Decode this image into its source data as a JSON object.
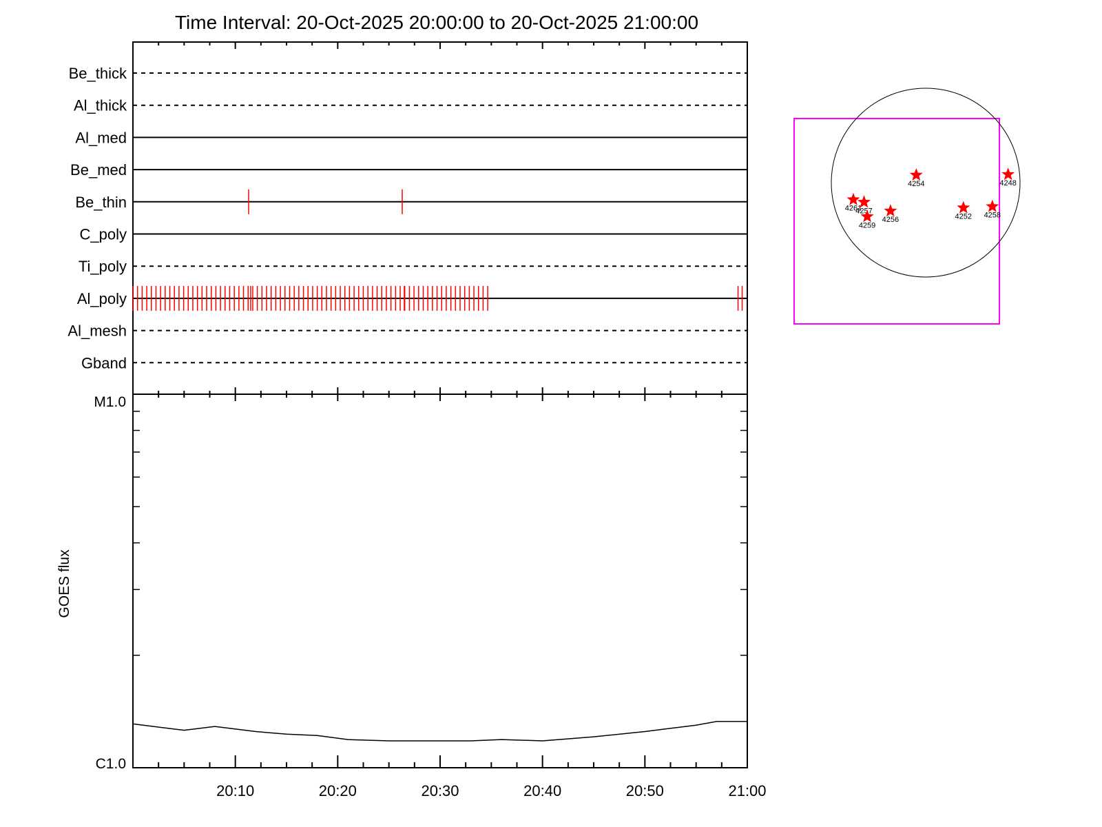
{
  "chart_data": [
    {
      "type": "line",
      "title": "Time Interval: 20-Oct-2025 20:00:00 to 20-Oct-2025 21:00:00",
      "xlim": [
        "20:00",
        "21:00"
      ],
      "filters": [
        {
          "name": "Be_thick",
          "style": "dashed",
          "events": []
        },
        {
          "name": "Al_thick",
          "style": "dashed",
          "events": []
        },
        {
          "name": "Al_med",
          "style": "solid",
          "events": []
        },
        {
          "name": "Be_med",
          "style": "solid",
          "events": []
        },
        {
          "name": "Be_thin",
          "style": "solid",
          "events": [
            11.3,
            26.3
          ]
        },
        {
          "name": "C_poly",
          "style": "solid",
          "events": []
        },
        {
          "name": "Ti_poly",
          "style": "dashed",
          "events": []
        },
        {
          "name": "Al_poly",
          "style": "solid",
          "events": "regular",
          "event_start": 0,
          "event_end": 34.7,
          "event_interval": 0.45,
          "extra_events": [
            11.5,
            26.5,
            59.1,
            59.5
          ]
        },
        {
          "name": "Al_mesh",
          "style": "dashed",
          "events": []
        },
        {
          "name": "Gband",
          "style": "dashed",
          "events": []
        }
      ],
      "event_color": "#ff0000"
    },
    {
      "type": "line",
      "ylabel": "GOES flux",
      "y_tick_labels": [
        "M1.0",
        "C1.0"
      ],
      "x_tick_labels": [
        "20:10",
        "20:20",
        "20:30",
        "20:40",
        "20:50",
        "21:00"
      ],
      "x_ticks_min": [
        10,
        20,
        30,
        40,
        50,
        60
      ],
      "yscale": "log",
      "ylim": [
        1e-06,
        1e-05
      ],
      "series": [
        {
          "x": [
            0,
            2,
            5,
            8,
            12,
            15,
            18,
            21,
            25,
            30,
            33,
            36,
            40,
            45,
            50,
            52,
            55,
            57,
            60
          ],
          "y": [
            1.31e-06,
            1.29e-06,
            1.26e-06,
            1.29e-06,
            1.25e-06,
            1.23e-06,
            1.22e-06,
            1.19e-06,
            1.18e-06,
            1.18e-06,
            1.18e-06,
            1.19e-06,
            1.18e-06,
            1.21e-06,
            1.25e-06,
            1.27e-06,
            1.3e-06,
            1.33e-06,
            1.33e-06
          ],
          "color": "#000000"
        }
      ]
    },
    {
      "type": "scatter",
      "box_color": "#ff00ff",
      "marker_color": "#ff0000",
      "regions": [
        {
          "label": "4254",
          "x": -15,
          "y": 12
        },
        {
          "label": "4248",
          "x": 131,
          "y": 13
        },
        {
          "label": "4261",
          "x": -115,
          "y": -27
        },
        {
          "label": "4257",
          "x": -98,
          "y": -31
        },
        {
          "label": "4259",
          "x": -93,
          "y": -54
        },
        {
          "label": "4256",
          "x": -56,
          "y": -45
        },
        {
          "label": "4252",
          "x": 60,
          "y": -40
        },
        {
          "label": "4258",
          "x": 106,
          "y": -38
        }
      ]
    }
  ]
}
